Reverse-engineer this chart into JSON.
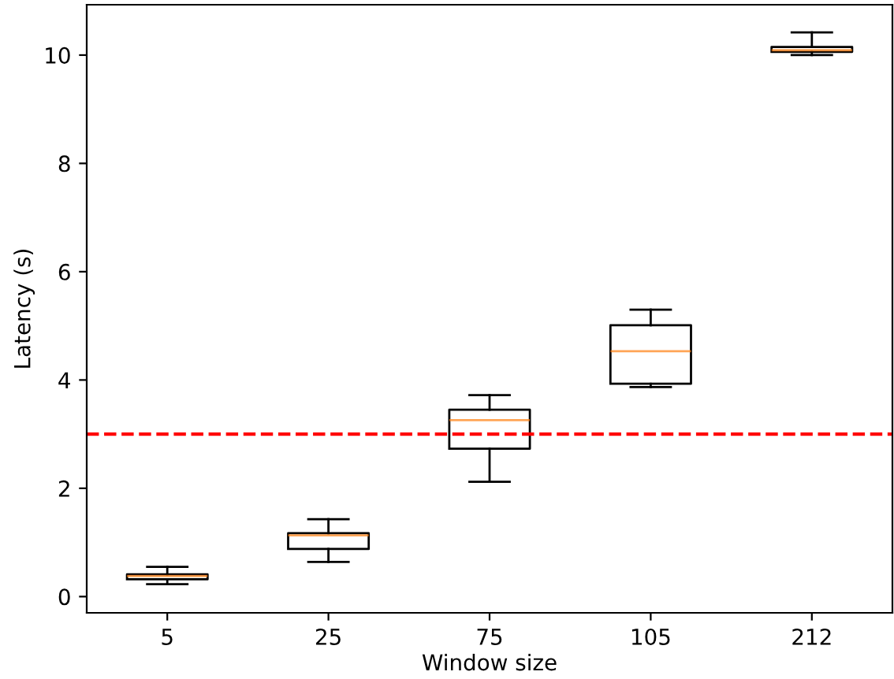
{
  "chart_data": {
    "type": "box",
    "xlabel": "Window size",
    "ylabel": "Latency (s)",
    "categories": [
      "5",
      "25",
      "75",
      "105",
      "212"
    ],
    "boxes": [
      {
        "low": 0.23,
        "q1": 0.32,
        "median": 0.38,
        "q3": 0.41,
        "high": 0.55
      },
      {
        "low": 0.64,
        "q1": 0.88,
        "median": 1.13,
        "q3": 1.17,
        "high": 1.43
      },
      {
        "low": 2.12,
        "q1": 2.73,
        "median": 3.26,
        "q3": 3.45,
        "high": 3.72
      },
      {
        "low": 3.87,
        "q1": 3.93,
        "median": 4.53,
        "q3": 5.01,
        "high": 5.3
      },
      {
        "low": 10.0,
        "q1": 10.06,
        "median": 10.09,
        "q3": 10.15,
        "high": 10.42
      }
    ],
    "ylim": [
      -0.3,
      10.93
    ],
    "yticks": [
      0,
      2,
      4,
      6,
      8,
      10
    ],
    "ref_lines": [
      {
        "axis": "y",
        "value": 3,
        "color": "#ff0000",
        "line_style": "dashed"
      }
    ],
    "grid": false
  }
}
